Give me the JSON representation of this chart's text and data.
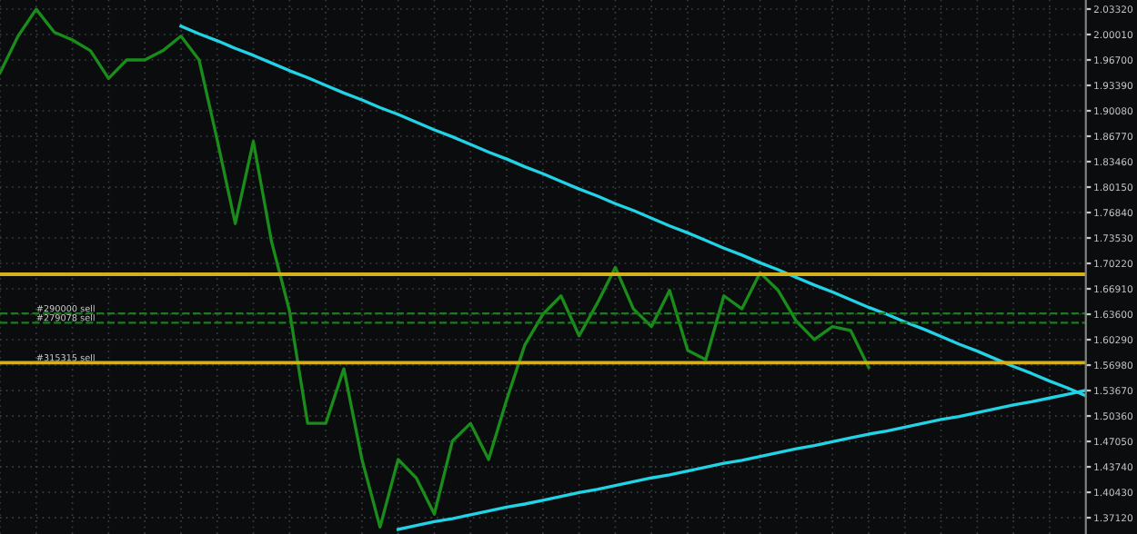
{
  "chart_data": {
    "type": "line",
    "categories": [
      null,
      null,
      null,
      null,
      null,
      null,
      null,
      null,
      null,
      null,
      null,
      null,
      null,
      null,
      null,
      null,
      null,
      null,
      null,
      null,
      null,
      null,
      null,
      null,
      null,
      null,
      null,
      null,
      null,
      null,
      null,
      null,
      null,
      null,
      null,
      null,
      null,
      null,
      null,
      null,
      null,
      null,
      null,
      null,
      null,
      null,
      null,
      null,
      null,
      null,
      null,
      null,
      null,
      null,
      null,
      null,
      null,
      null,
      null,
      null,
      null
    ],
    "series": [
      {
        "color": "#1a8c1a",
        "values": [
          1.95,
          1.998,
          2.033,
          2.003,
          1.993,
          1.979,
          1.943,
          1.967,
          1.967,
          1.979,
          1.998,
          1.967,
          1.863,
          1.754,
          1.861,
          1.731,
          1.64,
          1.494,
          1.494,
          1.565,
          1.447,
          1.359,
          1.447,
          1.423,
          1.376,
          1.471,
          1.494,
          1.447,
          1.525,
          1.596,
          1.636,
          1.66,
          1.608,
          1.65,
          1.697,
          1.643,
          1.62,
          1.667,
          1.589,
          1.577,
          1.66,
          1.643,
          1.69,
          1.667,
          1.627,
          1.603,
          1.62,
          1.615,
          1.567,
          null,
          null,
          null,
          null,
          null,
          null,
          null,
          null,
          null,
          null,
          null,
          null
        ]
      },
      {
        "color": "#22d3e6",
        "values": [
          null,
          null,
          null,
          null,
          null,
          null,
          null,
          null,
          null,
          null,
          2.011,
          2.001,
          1.992,
          1.982,
          1.973,
          1.963,
          1.953,
          1.944,
          1.934,
          1.924,
          1.915,
          1.905,
          1.896,
          1.886,
          1.876,
          1.867,
          1.857,
          1.847,
          1.838,
          1.828,
          1.819,
          1.809,
          1.799,
          1.79,
          1.78,
          1.771,
          1.761,
          1.751,
          1.742,
          1.732,
          1.722,
          1.713,
          1.703,
          1.694,
          1.684,
          1.674,
          1.665,
          1.655,
          1.645,
          1.636,
          1.626,
          1.617,
          1.607,
          1.597,
          1.588,
          1.578,
          1.568,
          1.559,
          1.549,
          1.54,
          1.53
        ]
      },
      {
        "color": "#22d3e6",
        "values": [
          null,
          null,
          null,
          null,
          null,
          null,
          null,
          null,
          null,
          null,
          null,
          null,
          null,
          null,
          null,
          null,
          null,
          null,
          null,
          null,
          null,
          null,
          1.356,
          1.361,
          1.366,
          1.37,
          1.375,
          1.38,
          1.385,
          1.389,
          1.394,
          1.399,
          1.404,
          1.408,
          1.413,
          1.418,
          1.423,
          1.427,
          1.432,
          1.437,
          1.442,
          1.446,
          1.451,
          1.456,
          1.461,
          1.465,
          1.47,
          1.475,
          1.48,
          1.484,
          1.489,
          1.494,
          1.499,
          1.503,
          1.508,
          1.513,
          1.518,
          1.522,
          1.527,
          1.532,
          1.537
        ]
      }
    ],
    "ylim": [
      1.35,
      2.045
    ],
    "yticks": [
      {
        "value": 2.0332,
        "label": "2.03320"
      },
      {
        "value": 2.0001,
        "label": "2.00010"
      },
      {
        "value": 1.967,
        "label": "1.96700"
      },
      {
        "value": 1.9339,
        "label": "1.93390"
      },
      {
        "value": 1.9008,
        "label": "1.90080"
      },
      {
        "value": 1.8677,
        "label": "1.86770"
      },
      {
        "value": 1.8346,
        "label": "1.83460"
      },
      {
        "value": 1.8015,
        "label": "1.80150"
      },
      {
        "value": 1.7684,
        "label": "1.76840"
      },
      {
        "value": 1.7353,
        "label": "1.73530"
      },
      {
        "value": 1.7022,
        "label": "1.70220"
      },
      {
        "value": 1.6691,
        "label": "1.66910"
      },
      {
        "value": 1.636,
        "label": "1.63600"
      },
      {
        "value": 1.6029,
        "label": "1.60290"
      },
      {
        "value": 1.5698,
        "label": "1.56980"
      },
      {
        "value": 1.5367,
        "label": "1.53670"
      },
      {
        "value": 1.5036,
        "label": "1.50360"
      },
      {
        "value": 1.4705,
        "label": "1.47050"
      },
      {
        "value": 1.4374,
        "label": "1.43740"
      },
      {
        "value": 1.4043,
        "label": "1.40430"
      },
      {
        "value": 1.3712,
        "label": "1.37120"
      }
    ],
    "ref_lines": [
      {
        "axis": "y",
        "value": 1.688,
        "color": "#d4b01c",
        "line_style": "solid"
      },
      {
        "axis": "y",
        "value": 1.573,
        "color": "#d4b01c",
        "line_style": "solid",
        "label": "#315315 sell"
      },
      {
        "axis": "y",
        "value": 1.637,
        "color": "#1f7a1f",
        "line_style": "dashed",
        "label": "#290000 sell"
      },
      {
        "axis": "y",
        "value": 1.625,
        "color": "#1f7a1f",
        "line_style": "dashed",
        "label": "#279078 sell"
      }
    ],
    "grid": true,
    "tick_labels": "y",
    "marker": "none"
  }
}
